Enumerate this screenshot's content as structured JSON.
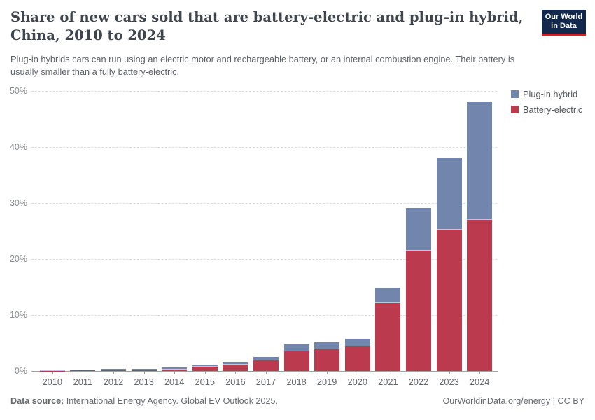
{
  "header": {
    "title": "Share of new cars sold that are battery-electric and plug-in hybrid, China, 2010 to 2024",
    "subtitle": "Plug-in hybrids cars can run using an electric motor and rechargeable battery, or an internal combustion engine. Their battery is usually smaller than a fully battery-electric.",
    "logo": {
      "line1": "Our World",
      "line2": "in Data",
      "bg_color": "#12294d",
      "accent_color": "#c0272d"
    }
  },
  "chart_data": {
    "type": "bar",
    "stacked": true,
    "title": "Share of new cars sold that are battery-electric and plug-in hybrid, China, 2010 to 2024",
    "xlabel": "",
    "ylabel": "",
    "ylim": [
      0,
      50
    ],
    "yticks": [
      0,
      10,
      20,
      30,
      40,
      50
    ],
    "ytick_suffix": "%",
    "grid": "dashed-horizontal",
    "legend_position": "top-right",
    "categories": [
      "2010",
      "2011",
      "2012",
      "2013",
      "2014",
      "2015",
      "2016",
      "2017",
      "2018",
      "2019",
      "2020",
      "2021",
      "2022",
      "2023",
      "2024"
    ],
    "series": [
      {
        "name": "Battery-electric",
        "color": "#bc3a4e",
        "values": [
          0.01,
          0.07,
          0.14,
          0.15,
          0.3,
          0.72,
          1.1,
          1.9,
          3.5,
          3.9,
          4.4,
          12.1,
          21.5,
          25.2,
          27
        ]
      },
      {
        "name": "Plug-in hybrid",
        "color": "#7286ad",
        "values": [
          0.005,
          0.02,
          0.04,
          0.05,
          0.15,
          0.28,
          0.4,
          0.5,
          1.1,
          1.1,
          1.2,
          2.7,
          7.5,
          12.8,
          21
        ]
      }
    ],
    "totals": [
      0.015,
      0.09,
      0.18,
      0.2,
      0.45,
      1.0,
      1.5,
      2.4,
      4.6,
      5.0,
      5.6,
      14.8,
      29,
      38,
      48
    ]
  },
  "legend": {
    "items": [
      {
        "label": "Plug-in hybrid",
        "color": "#7286ad"
      },
      {
        "label": "Battery-electric",
        "color": "#bc3a4e"
      }
    ]
  },
  "footer": {
    "source_label": "Data source:",
    "source_text": " International Energy Agency. Global EV Outlook 2025.",
    "right_text": "OurWorldinData.org/energy | CC BY"
  }
}
